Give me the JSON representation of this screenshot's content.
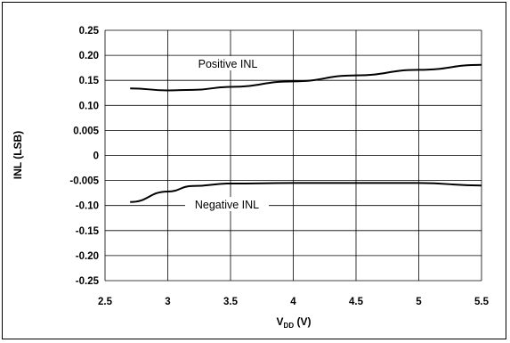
{
  "chart_data": {
    "type": "line",
    "xlabel": {
      "main": "V",
      "sub": "DD",
      "rest": " (V)"
    },
    "ylabel": "INL (LSB)",
    "xlim": [
      2.5,
      5.5
    ],
    "x_ticks": [
      "2.5",
      "3",
      "3.5",
      "4",
      "4.5",
      "5",
      "5.5"
    ],
    "y_ticks": [
      "0.25",
      "0.20",
      "0.15",
      "0.10",
      "0.005",
      "0",
      "-0.005",
      "-0.10",
      "-0.15",
      "-0.20",
      "-0.25"
    ],
    "grid": true,
    "annotations": [
      {
        "text": "Positive INL",
        "series": 0
      },
      {
        "text": "Negative INL",
        "series": 1
      }
    ],
    "series": [
      {
        "name": "Positive INL",
        "color": "#000000",
        "points": [
          [
            2.7,
            0.134
          ],
          [
            3.0,
            0.13
          ],
          [
            3.2,
            0.131
          ],
          [
            3.5,
            0.137
          ],
          [
            4.0,
            0.148
          ],
          [
            4.5,
            0.16
          ],
          [
            5.0,
            0.171
          ],
          [
            5.5,
            0.181
          ]
        ]
      },
      {
        "name": "Negative INL",
        "color": "#000000",
        "points": [
          [
            2.7,
            -0.093
          ],
          [
            3.0,
            -0.072
          ],
          [
            3.2,
            -0.061
          ],
          [
            3.5,
            -0.056
          ],
          [
            4.0,
            -0.055
          ],
          [
            4.5,
            -0.055
          ],
          [
            5.0,
            -0.055
          ],
          [
            5.5,
            -0.06
          ]
        ]
      }
    ]
  }
}
